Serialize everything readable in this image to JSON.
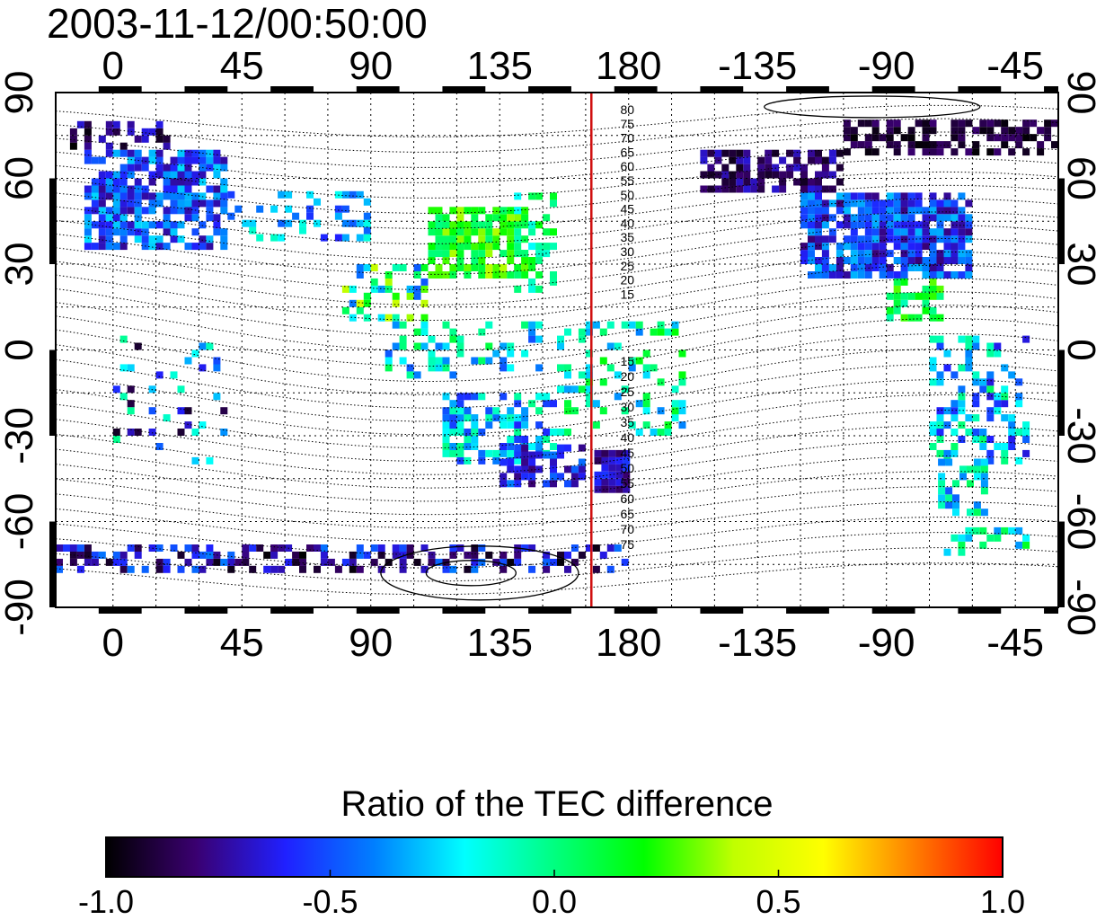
{
  "title": "2003-11-12/00:50:00",
  "colorbar_title": "Ratio of the TEC difference",
  "colors": {
    "meridian_line": "#d01010",
    "frame": "#000000"
  },
  "colormap": [
    "#000000",
    "#3a0070",
    "#2020ff",
    "#0080ff",
    "#00ffff",
    "#00ff80",
    "#00ff00",
    "#c0ff00",
    "#ffff00",
    "#ff8000",
    "#ff0000"
  ],
  "chart_data": {
    "type": "heatmap",
    "projection": "equirectangular",
    "x_ticks": [
      "0",
      "45",
      "90",
      "135",
      "180",
      "-135",
      "-90",
      "-45"
    ],
    "y_ticks": [
      "90",
      "60",
      "30",
      "0",
      "-30",
      "-60",
      "-90"
    ],
    "xlim": [
      -20,
      330
    ],
    "ylim": [
      -90,
      90
    ],
    "grid": true,
    "highlighted_meridian_lon": 167,
    "contour_labels_north": [
      "80",
      "75",
      "70",
      "65",
      "60",
      "55",
      "50",
      "45",
      "40",
      "35",
      "30",
      "25",
      "20",
      "15"
    ],
    "contour_labels_south": [
      "15",
      "20",
      "25",
      "30",
      "35",
      "40",
      "45",
      "50",
      "55",
      "60",
      "65",
      "70",
      "75"
    ],
    "colorbar": {
      "range": [
        -1.0,
        1.0
      ],
      "ticks": [
        "-1.0",
        "-0.5",
        "0.0",
        "0.5",
        "1.0"
      ]
    }
  }
}
